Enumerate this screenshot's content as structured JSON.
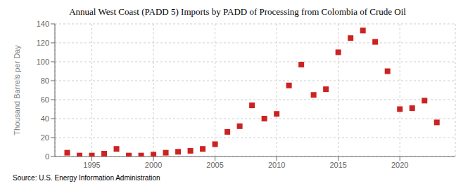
{
  "chart_data": {
    "type": "scatter",
    "title": "Annual West Coast (PADD 5) Imports by PADD of Processing from Colombia of Crude Oil",
    "ylabel": "Thousand Barrels per Day",
    "annotations": [
      "Source: U.S. Energy Information Administration"
    ],
    "x": [
      1993,
      1994,
      1995,
      1996,
      1997,
      1998,
      1999,
      2000,
      2001,
      2002,
      2003,
      2004,
      2005,
      2006,
      2007,
      2008,
      2009,
      2010,
      2011,
      2012,
      2013,
      2014,
      2015,
      2016,
      2017,
      2018,
      2019,
      2020,
      2021,
      2022,
      2023
    ],
    "values": [
      4,
      1,
      1,
      3,
      8,
      1,
      1,
      2,
      4,
      5,
      6,
      8,
      13,
      26,
      32,
      54,
      40,
      45,
      75,
      97,
      65,
      71,
      110,
      125,
      133,
      121,
      90,
      50,
      51,
      59,
      36
    ],
    "xlim": [
      1992,
      2024.5
    ],
    "xticks": [
      1995,
      2000,
      2005,
      2010,
      2015,
      2020
    ],
    "ylim": [
      0,
      140
    ],
    "yticks": [
      0,
      20,
      40,
      60,
      80,
      100,
      120,
      140
    ],
    "color": "#cc2222",
    "marker": "square",
    "grid": true
  }
}
